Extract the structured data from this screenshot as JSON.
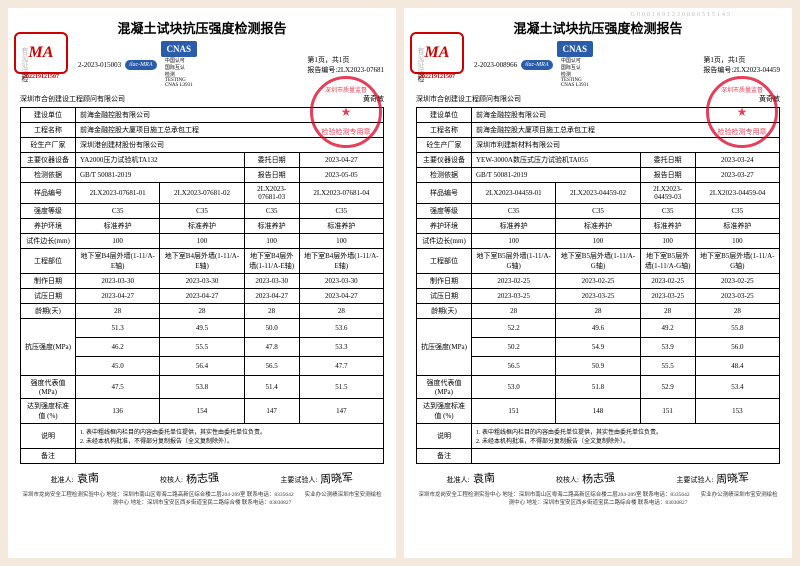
{
  "reports": [
    {
      "title": "混凝土试块抗压强度检测报告",
      "watermark": "",
      "check_type_lbl": "有见证送检",
      "ref_no_lbl": "报告编号:",
      "ref_no": "2LX2023-07681",
      "doc_no_prefix": "2-2023-",
      "doc_no": "015003",
      "ma_code": "202219121507",
      "page_indicator": "第1页，共1页",
      "lab_name": "深圳市合创建设工程顾问有限公司",
      "tester_name": "黄奇敏",
      "rows": {
        "unit_lbl": "建设单位",
        "unit": "前海金融控股有限公司",
        "proj_lbl": "工程名称",
        "proj": "前海金融控股大厦项目施工总承包工程",
        "mfr_lbl": "砼生产厂家",
        "mfr": "深圳港创建材股份有限公司",
        "equip_lbl": "主要仪器设备",
        "equip": "YA2000压力试验机TA132",
        "entrust_lbl": "委托日期",
        "entrust": "2023-04-27",
        "std_lbl": "检测依据",
        "std": "GB/T 50081-2019",
        "rptdate_lbl": "报告日期",
        "rptdate": "2023-05-05"
      },
      "col_lbls": {
        "sample": "样品编号",
        "grade": "强度等级",
        "cure": "养护环境",
        "edge": "试件边长(mm)",
        "part": "工程部位",
        "made": "制作日期",
        "test": "试压日期",
        "age": "龄期(天)",
        "str": "抗压强度(MPa)",
        "rep": "强度代表值(MPa)",
        "pct": "达到强度标准值 (%)",
        "remark": "说明",
        "note": "备注"
      },
      "cols": [
        {
          "sample": "2LX2023-07681-01",
          "grade": "C35",
          "cure": "标准养护",
          "edge": "100",
          "part": "地下室B4层外墙(1-11/A-E轴)",
          "made": "2023-03-30",
          "test": "2023-04-27",
          "age": "28",
          "str": [
            "51.3",
            "46.2",
            "45.0"
          ],
          "rep": "47.5",
          "pct": "136"
        },
        {
          "sample": "2LX2023-07681-02",
          "grade": "C35",
          "cure": "标准养护",
          "edge": "100",
          "part": "地下室B4层外墙(1-11/A-E轴)",
          "made": "2023-03-30",
          "test": "2023-04-27",
          "age": "28",
          "str": [
            "49.5",
            "55.5",
            "56.4"
          ],
          "rep": "53.8",
          "pct": "154"
        },
        {
          "sample": "2LX2023-07681-03",
          "grade": "C35",
          "cure": "标准养护",
          "edge": "100",
          "part": "地下室B4层外墙(1-11/A-E轴)",
          "made": "2023-03-30",
          "test": "2023-04-27",
          "age": "28",
          "str": [
            "50.0",
            "47.8",
            "56.5"
          ],
          "rep": "51.4",
          "pct": "147"
        },
        {
          "sample": "2LX2023-07681-04",
          "grade": "C35",
          "cure": "标准养护",
          "edge": "100",
          "part": "地下室B4层外墙(1-11/A-E轴)",
          "made": "2023-03-30",
          "test": "2023-04-27",
          "age": "28",
          "str": [
            "53.6",
            "53.3",
            "47.7"
          ],
          "rep": "51.5",
          "pct": "147"
        }
      ],
      "notes": [
        "1. 表中粗线框内栏目的内容由委托单位提供，其实性由委托单位负责。",
        "2. 未经本机构批准，不得部分复制报告（全文复制除外）。"
      ],
      "sig_lbls": {
        "approve": "批准人:",
        "review": "校核人:",
        "main": "主要试验人:"
      },
      "sigs": {
        "approve": "袁南",
        "review": "杨志强",
        "main": "周晓军"
      },
      "addr": "深圳市龙岗安全工程检测实验中心 地址：深圳市南山区粤海二路高新区综合楼二层204-209室 联系电话：8335642　　实业办公测绩深圳市宝安测绘检测中心 地址：深圳市宝安区西乡街道宝民二路综合楼 联系电话：83030827"
    },
    {
      "title": "混凝土试块抗压强度检测报告",
      "watermark": "G0001891230006515145",
      "check_type_lbl": "有见证送检",
      "ref_no_lbl": "报告编号:",
      "ref_no": "2LX2023-04459",
      "doc_no_prefix": "2-2023-",
      "doc_no": "008966",
      "ma_code": "202219121507",
      "page_indicator": "第1页，共1页",
      "lab_name": "深圳市合创建设工程顾问有限公司",
      "tester_name": "黄奇敏",
      "rows": {
        "unit_lbl": "建设单位",
        "unit": "前海金融控股有限公司",
        "proj_lbl": "工程名称",
        "proj": "前海金融控股大厦项目施工总承包工程",
        "mfr_lbl": "砼生产厂家",
        "mfr": "深圳市利建新材料有限公司",
        "equip_lbl": "主要仪器设备",
        "equip": "YEW-3000A数压式压力试验机TA055",
        "entrust_lbl": "委托日期",
        "entrust": "2023-03-24",
        "std_lbl": "检测依据",
        "std": "GB/T 50081-2019",
        "rptdate_lbl": "报告日期",
        "rptdate": "2023-03-27"
      },
      "col_lbls": {
        "sample": "样品编号",
        "grade": "强度等级",
        "cure": "养护环境",
        "edge": "试件边长(mm)",
        "part": "工程部位",
        "made": "制作日期",
        "test": "试压日期",
        "age": "龄期(天)",
        "str": "抗压强度(MPa)",
        "rep": "强度代表值(MPa)",
        "pct": "达到强度标准值 (%)",
        "remark": "说明",
        "note": "备注"
      },
      "cols": [
        {
          "sample": "2LX2023-04459-01",
          "grade": "C35",
          "cure": "标准养护",
          "edge": "100",
          "part": "地下室B5层外墙(1-11/A-G轴)",
          "made": "2023-02-25",
          "test": "2023-03-25",
          "age": "28",
          "str": [
            "52.2",
            "50.2",
            "56.5"
          ],
          "rep": "53.0",
          "pct": "151"
        },
        {
          "sample": "2LX2023-04459-02",
          "grade": "C35",
          "cure": "标准养护",
          "edge": "100",
          "part": "地下室B5层外墙(1-11/A-G轴)",
          "made": "2023-02-25",
          "test": "2023-03-25",
          "age": "28",
          "str": [
            "49.6",
            "54.9",
            "50.9"
          ],
          "rep": "51.8",
          "pct": "148"
        },
        {
          "sample": "2LX2023-04459-03",
          "grade": "C35",
          "cure": "标准养护",
          "edge": "100",
          "part": "地下室B5层外墙(1-11/A-G轴)",
          "made": "2023-02-25",
          "test": "2023-03-25",
          "age": "28",
          "str": [
            "49.2",
            "53.9",
            "55.5"
          ],
          "rep": "52.9",
          "pct": "151"
        },
        {
          "sample": "2LX2023-04459-04",
          "grade": "C35",
          "cure": "标准养护",
          "edge": "100",
          "part": "地下室B5层外墙(1-11/A-G轴)",
          "made": "2023-02-25",
          "test": "2023-03-25",
          "age": "28",
          "str": [
            "55.8",
            "56.0",
            "48.4"
          ],
          "rep": "53.4",
          "pct": "153"
        }
      ],
      "notes": [
        "1. 表中粗线框内栏目的内容由委托单位提供，其实性由委托单位负责。",
        "2. 未经本机构批准，不得部分复制报告（全文复制除外）。"
      ],
      "sig_lbls": {
        "approve": "批准人:",
        "review": "校核人:",
        "main": "主要试验人:"
      },
      "sigs": {
        "approve": "袁南",
        "review": "杨志强",
        "main": "周晓军"
      },
      "addr": "深圳市龙岗安全工程检测实验中心 地址：深圳市南山区粤海二路高新区综合楼二层204-209室 联系电话：8335642　　实业办公测绩深圳市宝安测绘检测中心 地址：深圳市宝安区西乡街道宝民二路综合楼 联系电话：83030827"
    }
  ]
}
